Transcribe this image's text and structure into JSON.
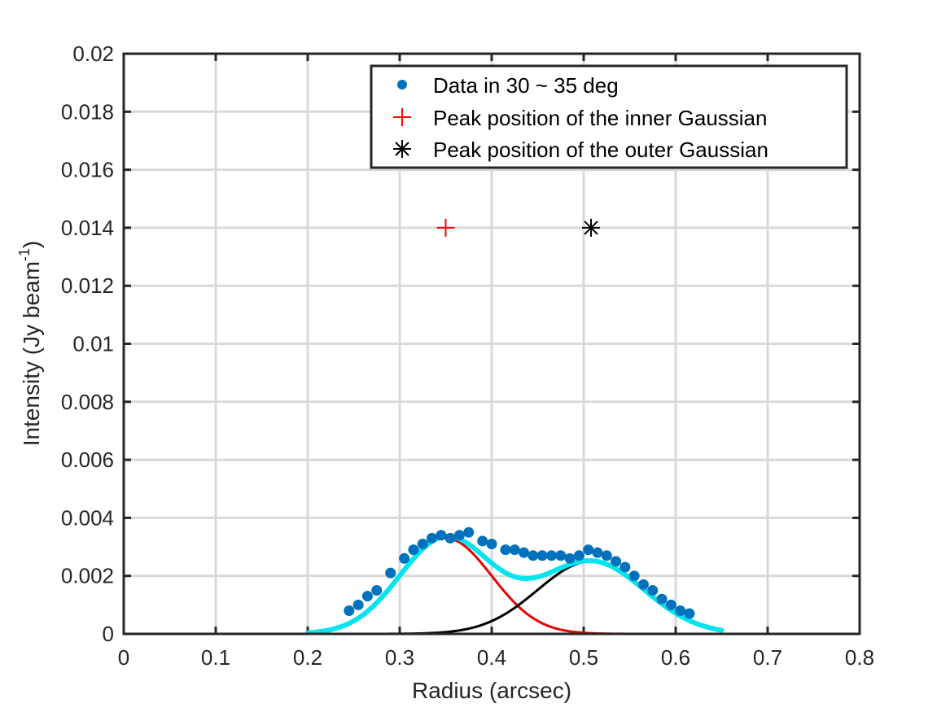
{
  "chart_data": {
    "type": "scatter",
    "title": "",
    "xlabel": "Radius (arcsec)",
    "ylabel": "Intensity (Jy beam",
    "ylabel_superscript": "-1",
    "ylabel_suffix": ")",
    "xlim": [
      0,
      0.8
    ],
    "ylim": [
      0,
      0.02
    ],
    "xticks": [
      "0",
      "0.1",
      "0.2",
      "0.3",
      "0.4",
      "0.5",
      "0.6",
      "0.7",
      "0.8"
    ],
    "yticks": [
      "0",
      "0.002",
      "0.004",
      "0.006",
      "0.008",
      "0.01",
      "0.012",
      "0.014",
      "0.016",
      "0.018",
      "0.02"
    ],
    "grid": true,
    "legend_position": "top-right",
    "series": [
      {
        "name": "Data in 30 ~ 35 deg",
        "kind": "points",
        "color": "#0072BD",
        "points": [
          [
            0.245,
            0.0008
          ],
          [
            0.255,
            0.001
          ],
          [
            0.265,
            0.0013
          ],
          [
            0.275,
            0.0015
          ],
          [
            0.29,
            0.0021
          ],
          [
            0.305,
            0.0026
          ],
          [
            0.315,
            0.0029
          ],
          [
            0.325,
            0.0031
          ],
          [
            0.335,
            0.0033
          ],
          [
            0.345,
            0.0034
          ],
          [
            0.355,
            0.0033
          ],
          [
            0.365,
            0.0034
          ],
          [
            0.375,
            0.0035
          ],
          [
            0.39,
            0.0032
          ],
          [
            0.4,
            0.0031
          ],
          [
            0.415,
            0.0029
          ],
          [
            0.425,
            0.0029
          ],
          [
            0.435,
            0.0028
          ],
          [
            0.445,
            0.0027
          ],
          [
            0.455,
            0.0027
          ],
          [
            0.465,
            0.0027
          ],
          [
            0.475,
            0.0027
          ],
          [
            0.485,
            0.0026
          ],
          [
            0.495,
            0.0027
          ],
          [
            0.505,
            0.0029
          ],
          [
            0.515,
            0.0028
          ],
          [
            0.525,
            0.0027
          ],
          [
            0.535,
            0.0025
          ],
          [
            0.545,
            0.0023
          ],
          [
            0.555,
            0.002
          ],
          [
            0.565,
            0.0017
          ],
          [
            0.575,
            0.0015
          ],
          [
            0.585,
            0.0012
          ],
          [
            0.595,
            0.001
          ],
          [
            0.605,
            0.0008
          ],
          [
            0.615,
            0.0007
          ]
        ]
      },
      {
        "name": "Peak position of the inner Gaussian",
        "kind": "marker-plus",
        "color": "#FF0000",
        "points": [
          [
            0.35,
            0.014
          ]
        ]
      },
      {
        "name": "Peak position of the outer Gaussian",
        "kind": "marker-asterisk",
        "color": "#000000",
        "points": [
          [
            0.508,
            0.014
          ]
        ]
      }
    ],
    "curves": [
      {
        "kind": "gaussian",
        "color": "#E60000",
        "amplitude": 0.0033,
        "center": 0.35,
        "sigma": 0.05,
        "x_range": [
          0.2,
          0.615
        ]
      },
      {
        "kind": "gaussian",
        "color": "#000000",
        "amplitude": 0.0025,
        "center": 0.508,
        "sigma": 0.058,
        "x_range": [
          0.25,
          0.615
        ]
      },
      {
        "kind": "sum",
        "color": "#00E5EE",
        "x_range": [
          0.2,
          0.65
        ]
      }
    ]
  }
}
